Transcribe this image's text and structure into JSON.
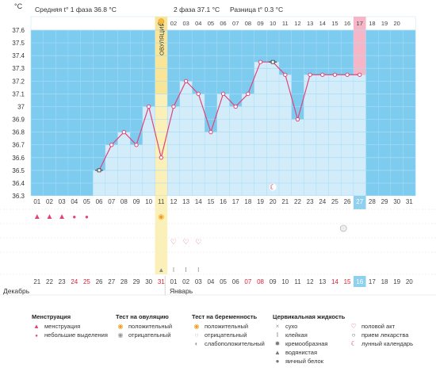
{
  "header": {
    "unit": "°C",
    "phase1": "Средняя t° 1 фаза 36.8 °C",
    "phase2": "2 фаза 37.1 °C",
    "diff": "Разница t° 0.3 °C",
    "ovulation_label": "ОВУЛЯЦИЯ"
  },
  "chart_data": {
    "type": "line",
    "ylim": [
      36.3,
      37.6
    ],
    "yticks": [
      "37.6",
      "37.5",
      "37.4",
      "37.3",
      "37.2",
      "37.1",
      "37",
      "36.9",
      "36.8",
      "36.7",
      "36.6",
      "36.5",
      "36.4",
      "36.3"
    ],
    "cycle_days": [
      "01",
      "02",
      "03",
      "04",
      "05",
      "06",
      "07",
      "08",
      "09",
      "10",
      "11",
      "12",
      "13",
      "14",
      "15",
      "16",
      "17",
      "18",
      "19",
      "20",
      "21",
      "22",
      "23",
      "24",
      "25",
      "26",
      "27",
      "28",
      "29",
      "30",
      "31"
    ],
    "top_day_labels": [
      "01",
      "02",
      "03",
      "04",
      "05",
      "06",
      "07",
      "08",
      "09",
      "10",
      "11",
      "12",
      "13",
      "14",
      "15",
      "16",
      "17",
      "18",
      "19",
      "20"
    ],
    "calendar_dates": [
      "21",
      "22",
      "23",
      "24",
      "25",
      "26",
      "27",
      "28",
      "29",
      "30",
      "31",
      "01",
      "02",
      "03",
      "04",
      "05",
      "06",
      "07",
      "08",
      "09",
      "10",
      "11",
      "12",
      "13",
      "14",
      "15",
      "16",
      "17",
      "18",
      "19",
      "20"
    ],
    "red_dates": [
      24,
      25,
      31,
      7,
      8,
      14,
      15
    ],
    "x_measured": [
      6,
      7,
      8,
      9,
      10,
      11,
      12,
      13,
      14,
      15,
      16,
      17,
      18,
      19,
      20,
      21,
      22,
      23,
      24,
      25,
      26,
      27
    ],
    "temperatures": [
      36.5,
      36.7,
      36.8,
      36.7,
      37.0,
      36.6,
      37.0,
      37.2,
      37.1,
      36.8,
      37.1,
      37.0,
      37.1,
      37.35,
      37.35,
      37.25,
      36.9,
      37.25,
      37.25,
      37.25,
      37.25,
      37.25
    ],
    "ovulation_day": 11,
    "today": 27,
    "excluded_days": [
      6,
      20
    ],
    "highlight_day": 16
  },
  "markers": {
    "menstruation_days": [
      1,
      2,
      3,
      4,
      5
    ],
    "heart_days": [
      12,
      13,
      14
    ],
    "mucus_days": [
      11,
      12,
      13,
      14
    ],
    "ovulation_test_day": 11,
    "pregnancy_test_day": 26,
    "lunar_day": 20
  },
  "months": {
    "dec": "Декабрь",
    "jan": "Январь"
  },
  "legend": {
    "menstruation": {
      "title": "Менструация",
      "items": [
        "менструация",
        "небольшие выделения"
      ]
    },
    "ovulation_test": {
      "title": "Тест на овуляцию",
      "items": [
        "положительный",
        "отрицательный"
      ]
    },
    "pregnancy_test": {
      "title": "Тест на беременность",
      "items": [
        "положительный",
        "отрицательный",
        "слабоположительный"
      ]
    },
    "cervical": {
      "title": "Цервикальная жидкость",
      "items": [
        "сухо",
        "клейкая",
        "кремообразная",
        "водянистая",
        "яичный белок"
      ]
    },
    "other": {
      "items": [
        "половой акт",
        "прием лекарства",
        "лунный календарь"
      ]
    }
  },
  "colors": {
    "bg": "#7ecbf0",
    "grid": "#a9ddf5",
    "column": "#d3ecfa",
    "line": "#e0447a",
    "ovulation": "#fbf0b8",
    "ovulation_strip": "#f8dc7c",
    "highlight": "#f7b6c7",
    "today": "#8fd0ee"
  }
}
